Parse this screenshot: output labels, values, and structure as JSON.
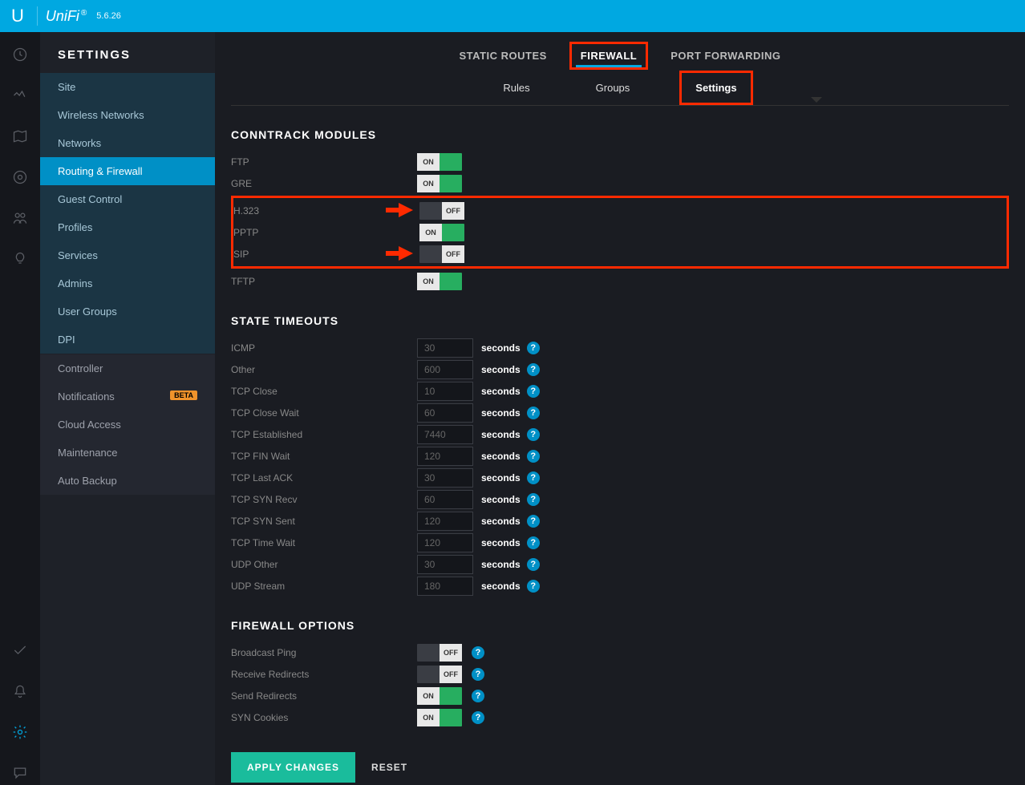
{
  "topbar": {
    "brand": "UniFi",
    "version": "5.6.26"
  },
  "sidebar": {
    "title": "SETTINGS",
    "group1": [
      "Site",
      "Wireless Networks",
      "Networks",
      "Routing & Firewall",
      "Guest Control",
      "Profiles",
      "Services",
      "Admins",
      "User Groups",
      "DPI"
    ],
    "group1_active": 3,
    "group2": [
      "Controller",
      "Notifications",
      "Cloud Access",
      "Maintenance",
      "Auto Backup"
    ],
    "beta_index": 1,
    "beta_label": "BETA"
  },
  "tabs1": [
    "STATIC ROUTES",
    "FIREWALL",
    "PORT FORWARDING"
  ],
  "tabs1_active": 1,
  "tabs2": [
    "Rules",
    "Groups",
    "Settings"
  ],
  "tabs2_active": 2,
  "sections": {
    "conntrack": {
      "title": "CONNTRACK MODULES",
      "rows": [
        {
          "label": "FTP",
          "on": true
        },
        {
          "label": "GRE",
          "on": true
        },
        {
          "label": "H.323",
          "on": false,
          "hi": true
        },
        {
          "label": "PPTP",
          "on": true
        },
        {
          "label": "SIP",
          "on": false,
          "hi": true
        },
        {
          "label": "TFTP",
          "on": true
        }
      ]
    },
    "timeouts": {
      "title": "STATE TIMEOUTS",
      "unit": "seconds",
      "rows": [
        {
          "label": "ICMP",
          "value": "30"
        },
        {
          "label": "Other",
          "value": "600"
        },
        {
          "label": "TCP Close",
          "value": "10"
        },
        {
          "label": "TCP Close Wait",
          "value": "60"
        },
        {
          "label": "TCP Established",
          "value": "7440"
        },
        {
          "label": "TCP FIN Wait",
          "value": "120"
        },
        {
          "label": "TCP Last ACK",
          "value": "30"
        },
        {
          "label": "TCP SYN Recv",
          "value": "60"
        },
        {
          "label": "TCP SYN Sent",
          "value": "120"
        },
        {
          "label": "TCP Time Wait",
          "value": "120"
        },
        {
          "label": "UDP Other",
          "value": "30"
        },
        {
          "label": "UDP Stream",
          "value": "180"
        }
      ]
    },
    "fwopts": {
      "title": "FIREWALL OPTIONS",
      "rows": [
        {
          "label": "Broadcast Ping",
          "on": false,
          "help": true
        },
        {
          "label": "Receive Redirects",
          "on": false,
          "help": true
        },
        {
          "label": "Send Redirects",
          "on": true,
          "help": true
        },
        {
          "label": "SYN Cookies",
          "on": true,
          "help": true
        }
      ]
    }
  },
  "buttons": {
    "apply": "APPLY CHANGES",
    "reset": "RESET"
  },
  "toggle": {
    "on": "ON",
    "off": "OFF"
  }
}
